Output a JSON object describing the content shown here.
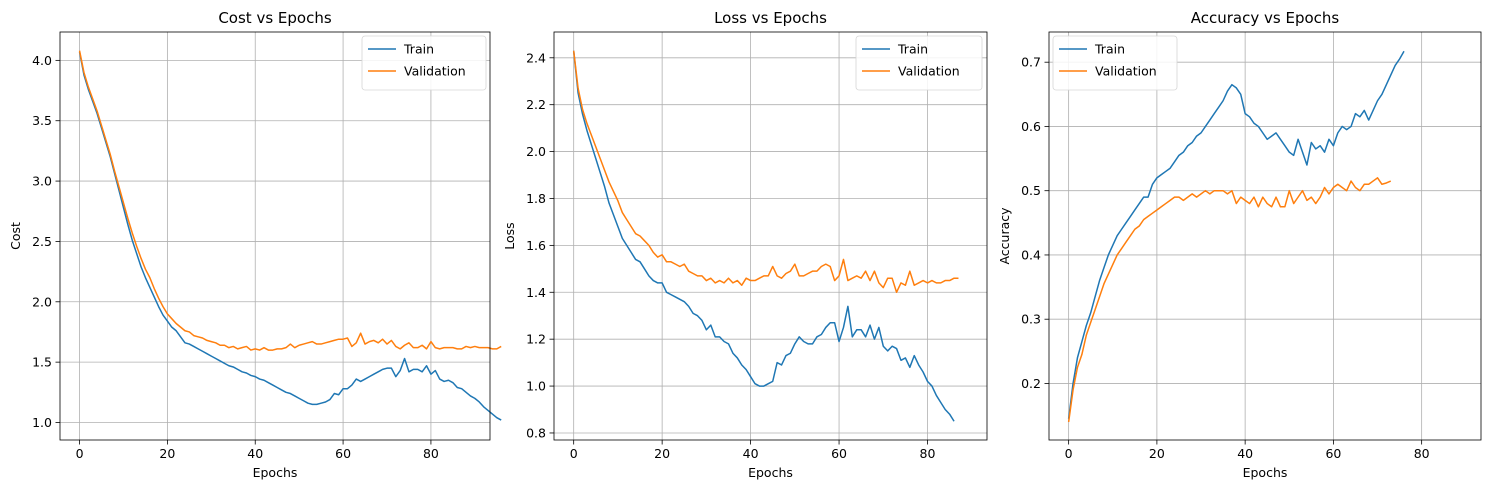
{
  "chart_data": [
    {
      "type": "line",
      "title": "Cost vs Epochs",
      "xlabel": "Epochs",
      "ylabel": "Cost",
      "xlim": [
        -4.45,
        93.45
      ],
      "ylim": [
        0.855,
        4.235
      ],
      "xticks": [
        0,
        20,
        40,
        60,
        80
      ],
      "xtick_labels": [
        "0",
        "20",
        "40",
        "60",
        "80"
      ],
      "yticks": [
        1.0,
        1.5,
        2.0,
        2.5,
        3.0,
        3.5,
        4.0
      ],
      "ytick_labels": [
        "1.0",
        "1.5",
        "2.0",
        "2.5",
        "3.0",
        "3.5",
        "4.0"
      ],
      "grid": true,
      "legend": "upper right",
      "series": [
        {
          "name": "Train",
          "color": "#1f77b4",
          "values": [
            4.07,
            3.88,
            3.76,
            3.66,
            3.56,
            3.44,
            3.32,
            3.2,
            3.06,
            2.92,
            2.78,
            2.64,
            2.51,
            2.4,
            2.29,
            2.2,
            2.12,
            2.04,
            1.96,
            1.89,
            1.84,
            1.79,
            1.76,
            1.71,
            1.66,
            1.65,
            1.63,
            1.61,
            1.59,
            1.57,
            1.55,
            1.53,
            1.51,
            1.49,
            1.47,
            1.46,
            1.44,
            1.42,
            1.41,
            1.39,
            1.38,
            1.36,
            1.35,
            1.33,
            1.31,
            1.29,
            1.27,
            1.25,
            1.24,
            1.22,
            1.2,
            1.18,
            1.16,
            1.15,
            1.15,
            1.16,
            1.17,
            1.19,
            1.24,
            1.23,
            1.28,
            1.28,
            1.31,
            1.36,
            1.34,
            1.36,
            1.38,
            1.4,
            1.42,
            1.44,
            1.45,
            1.45,
            1.38,
            1.43,
            1.53,
            1.42,
            1.44,
            1.44,
            1.42,
            1.47,
            1.4,
            1.43,
            1.36,
            1.34,
            1.35,
            1.33,
            1.29,
            1.28,
            1.25,
            1.22,
            1.2,
            1.17,
            1.13,
            1.1,
            1.07,
            1.04,
            1.02
          ]
        },
        {
          "name": "Validation",
          "color": "#ff7f0e",
          "values": [
            4.08,
            3.9,
            3.78,
            3.68,
            3.58,
            3.46,
            3.34,
            3.22,
            3.08,
            2.95,
            2.82,
            2.69,
            2.57,
            2.46,
            2.36,
            2.27,
            2.2,
            2.11,
            2.03,
            1.96,
            1.9,
            1.86,
            1.82,
            1.79,
            1.76,
            1.75,
            1.72,
            1.71,
            1.7,
            1.68,
            1.67,
            1.66,
            1.64,
            1.64,
            1.62,
            1.63,
            1.61,
            1.62,
            1.63,
            1.6,
            1.61,
            1.6,
            1.62,
            1.6,
            1.6,
            1.61,
            1.61,
            1.62,
            1.65,
            1.62,
            1.64,
            1.65,
            1.66,
            1.67,
            1.65,
            1.65,
            1.66,
            1.67,
            1.68,
            1.69,
            1.69,
            1.7,
            1.63,
            1.66,
            1.74,
            1.65,
            1.67,
            1.68,
            1.66,
            1.69,
            1.65,
            1.68,
            1.63,
            1.61,
            1.64,
            1.66,
            1.62,
            1.62,
            1.64,
            1.61,
            1.67,
            1.62,
            1.61,
            1.62,
            1.62,
            1.62,
            1.61,
            1.61,
            1.63,
            1.62,
            1.63,
            1.62,
            1.62,
            1.62,
            1.61,
            1.61,
            1.63
          ]
        }
      ]
    },
    {
      "type": "line",
      "title": "Loss vs Epochs",
      "xlabel": "Epochs",
      "ylabel": "Loss",
      "xlim": [
        -4.45,
        93.45
      ],
      "ylim": [
        0.77,
        2.51
      ],
      "xticks": [
        0,
        20,
        40,
        60,
        80
      ],
      "xtick_labels": [
        "0",
        "20",
        "40",
        "60",
        "80"
      ],
      "yticks": [
        0.8,
        1.0,
        1.2,
        1.4,
        1.6,
        1.8,
        2.0,
        2.2,
        2.4
      ],
      "ytick_labels": [
        "0.8",
        "1.0",
        "1.2",
        "1.4",
        "1.6",
        "1.8",
        "2.0",
        "2.2",
        "2.4"
      ],
      "grid": true,
      "legend": "upper right",
      "series": [
        {
          "name": "Train",
          "color": "#1f77b4",
          "values": [
            2.43,
            2.25,
            2.16,
            2.09,
            2.03,
            1.97,
            1.91,
            1.85,
            1.78,
            1.73,
            1.68,
            1.63,
            1.6,
            1.57,
            1.54,
            1.53,
            1.5,
            1.47,
            1.45,
            1.44,
            1.44,
            1.4,
            1.39,
            1.38,
            1.37,
            1.36,
            1.34,
            1.31,
            1.3,
            1.28,
            1.24,
            1.26,
            1.21,
            1.21,
            1.19,
            1.18,
            1.14,
            1.12,
            1.09,
            1.07,
            1.04,
            1.01,
            1.0,
            1.0,
            1.01,
            1.02,
            1.1,
            1.09,
            1.13,
            1.14,
            1.18,
            1.21,
            1.19,
            1.18,
            1.18,
            1.21,
            1.22,
            1.25,
            1.27,
            1.27,
            1.19,
            1.25,
            1.34,
            1.21,
            1.24,
            1.24,
            1.21,
            1.26,
            1.2,
            1.25,
            1.17,
            1.15,
            1.17,
            1.16,
            1.11,
            1.12,
            1.08,
            1.13,
            1.09,
            1.06,
            1.02,
            1.0,
            0.96,
            0.93,
            0.9,
            0.88,
            0.85
          ]
        },
        {
          "name": "Validation",
          "color": "#ff7f0e",
          "values": [
            2.43,
            2.27,
            2.18,
            2.12,
            2.07,
            2.02,
            1.97,
            1.92,
            1.87,
            1.83,
            1.79,
            1.74,
            1.71,
            1.68,
            1.65,
            1.64,
            1.62,
            1.6,
            1.57,
            1.55,
            1.56,
            1.53,
            1.53,
            1.52,
            1.51,
            1.52,
            1.49,
            1.48,
            1.47,
            1.47,
            1.45,
            1.46,
            1.44,
            1.45,
            1.44,
            1.46,
            1.44,
            1.45,
            1.43,
            1.46,
            1.45,
            1.45,
            1.46,
            1.47,
            1.47,
            1.51,
            1.47,
            1.46,
            1.48,
            1.49,
            1.52,
            1.47,
            1.47,
            1.48,
            1.49,
            1.49,
            1.51,
            1.52,
            1.51,
            1.45,
            1.47,
            1.54,
            1.45,
            1.46,
            1.47,
            1.46,
            1.49,
            1.45,
            1.49,
            1.44,
            1.42,
            1.46,
            1.46,
            1.4,
            1.44,
            1.43,
            1.49,
            1.43,
            1.44,
            1.45,
            1.44,
            1.45,
            1.44,
            1.44,
            1.45,
            1.45,
            1.46,
            1.46
          ]
        }
      ]
    },
    {
      "type": "line",
      "title": "Accuracy vs Epochs",
      "xlabel": "Epochs",
      "ylabel": "Accuracy",
      "xlim": [
        -4.45,
        93.45
      ],
      "ylim": [
        0.112,
        0.747
      ],
      "xticks": [
        0,
        20,
        40,
        60,
        80
      ],
      "xtick_labels": [
        "0",
        "20",
        "40",
        "60",
        "80"
      ],
      "yticks": [
        0.2,
        0.3,
        0.4,
        0.5,
        0.6,
        0.7
      ],
      "ytick_labels": [
        "0.2",
        "0.3",
        "0.4",
        "0.5",
        "0.6",
        "0.7"
      ],
      "grid": true,
      "legend": "upper left",
      "series": [
        {
          "name": "Train",
          "color": "#1f77b4",
          "values": [
            0.145,
            0.2,
            0.24,
            0.265,
            0.29,
            0.31,
            0.335,
            0.36,
            0.38,
            0.4,
            0.415,
            0.43,
            0.44,
            0.45,
            0.46,
            0.47,
            0.48,
            0.49,
            0.49,
            0.51,
            0.52,
            0.525,
            0.53,
            0.535,
            0.545,
            0.555,
            0.56,
            0.57,
            0.575,
            0.585,
            0.59,
            0.6,
            0.61,
            0.62,
            0.63,
            0.64,
            0.655,
            0.665,
            0.66,
            0.65,
            0.62,
            0.615,
            0.605,
            0.6,
            0.59,
            0.58,
            0.585,
            0.59,
            0.58,
            0.57,
            0.56,
            0.555,
            0.58,
            0.56,
            0.54,
            0.575,
            0.565,
            0.57,
            0.56,
            0.58,
            0.57,
            0.59,
            0.6,
            0.595,
            0.6,
            0.62,
            0.615,
            0.625,
            0.61,
            0.625,
            0.64,
            0.65,
            0.665,
            0.68,
            0.695,
            0.705,
            0.717
          ]
        },
        {
          "name": "Validation",
          "color": "#ff7f0e",
          "values": [
            0.14,
            0.19,
            0.225,
            0.245,
            0.275,
            0.295,
            0.315,
            0.335,
            0.355,
            0.37,
            0.385,
            0.4,
            0.41,
            0.42,
            0.43,
            0.44,
            0.445,
            0.455,
            0.46,
            0.465,
            0.47,
            0.475,
            0.48,
            0.485,
            0.49,
            0.49,
            0.485,
            0.49,
            0.495,
            0.49,
            0.495,
            0.5,
            0.495,
            0.5,
            0.5,
            0.5,
            0.495,
            0.5,
            0.48,
            0.49,
            0.485,
            0.48,
            0.49,
            0.475,
            0.49,
            0.48,
            0.475,
            0.49,
            0.475,
            0.475,
            0.5,
            0.48,
            0.49,
            0.5,
            0.485,
            0.49,
            0.48,
            0.49,
            0.505,
            0.495,
            0.505,
            0.51,
            0.505,
            0.5,
            0.515,
            0.505,
            0.5,
            0.51,
            0.51,
            0.515,
            0.52,
            0.51,
            0.512,
            0.515
          ]
        }
      ]
    }
  ]
}
